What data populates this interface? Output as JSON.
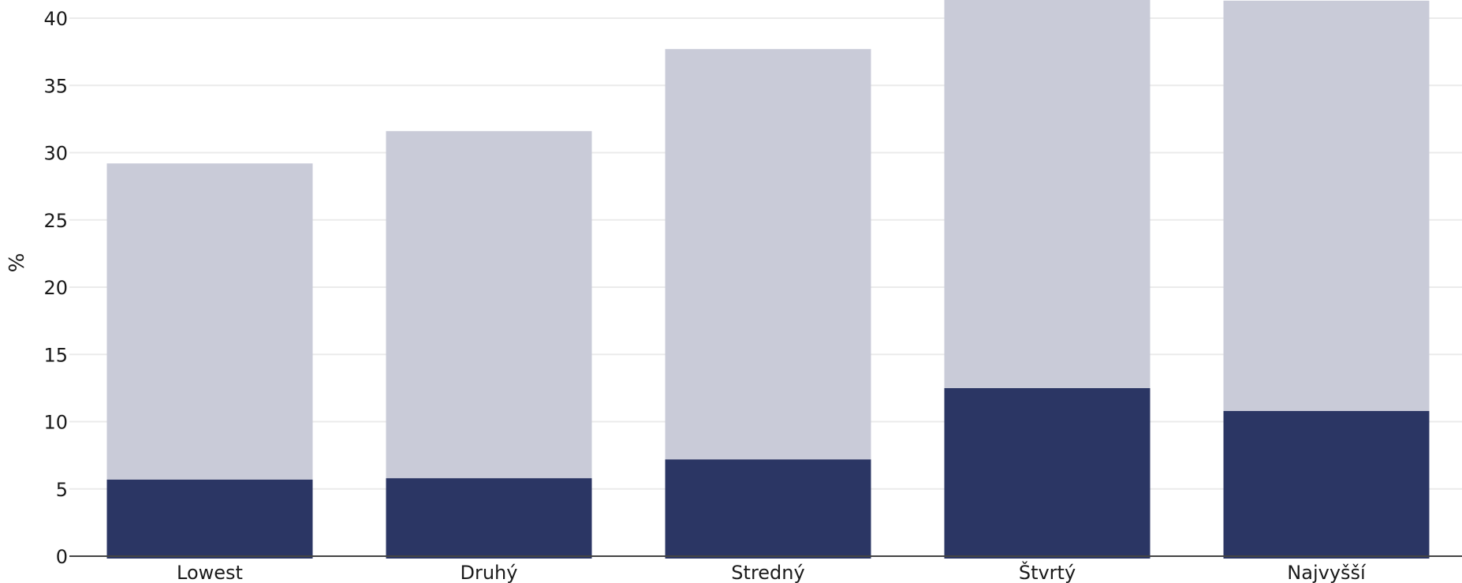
{
  "chart_data": {
    "type": "bar",
    "stacked": true,
    "categories": [
      "Lowest",
      "Druhý",
      "Stredný",
      "Štvrtý",
      "Najvyšší"
    ],
    "series": [
      {
        "values": [
          5.7,
          5.8,
          7.2,
          12.5,
          10.8
        ],
        "color": "#2b3664"
      },
      {
        "values": [
          23.5,
          25.8,
          30.5,
          29.0,
          30.5
        ],
        "color": "#c9cbd8"
      }
    ],
    "ylabel": "%",
    "xlabel": "",
    "ylim": [
      0,
      40
    ],
    "yticks": [
      0,
      5,
      10,
      15,
      20,
      25,
      30,
      35,
      40
    ],
    "grid": true,
    "legend": "none"
  }
}
